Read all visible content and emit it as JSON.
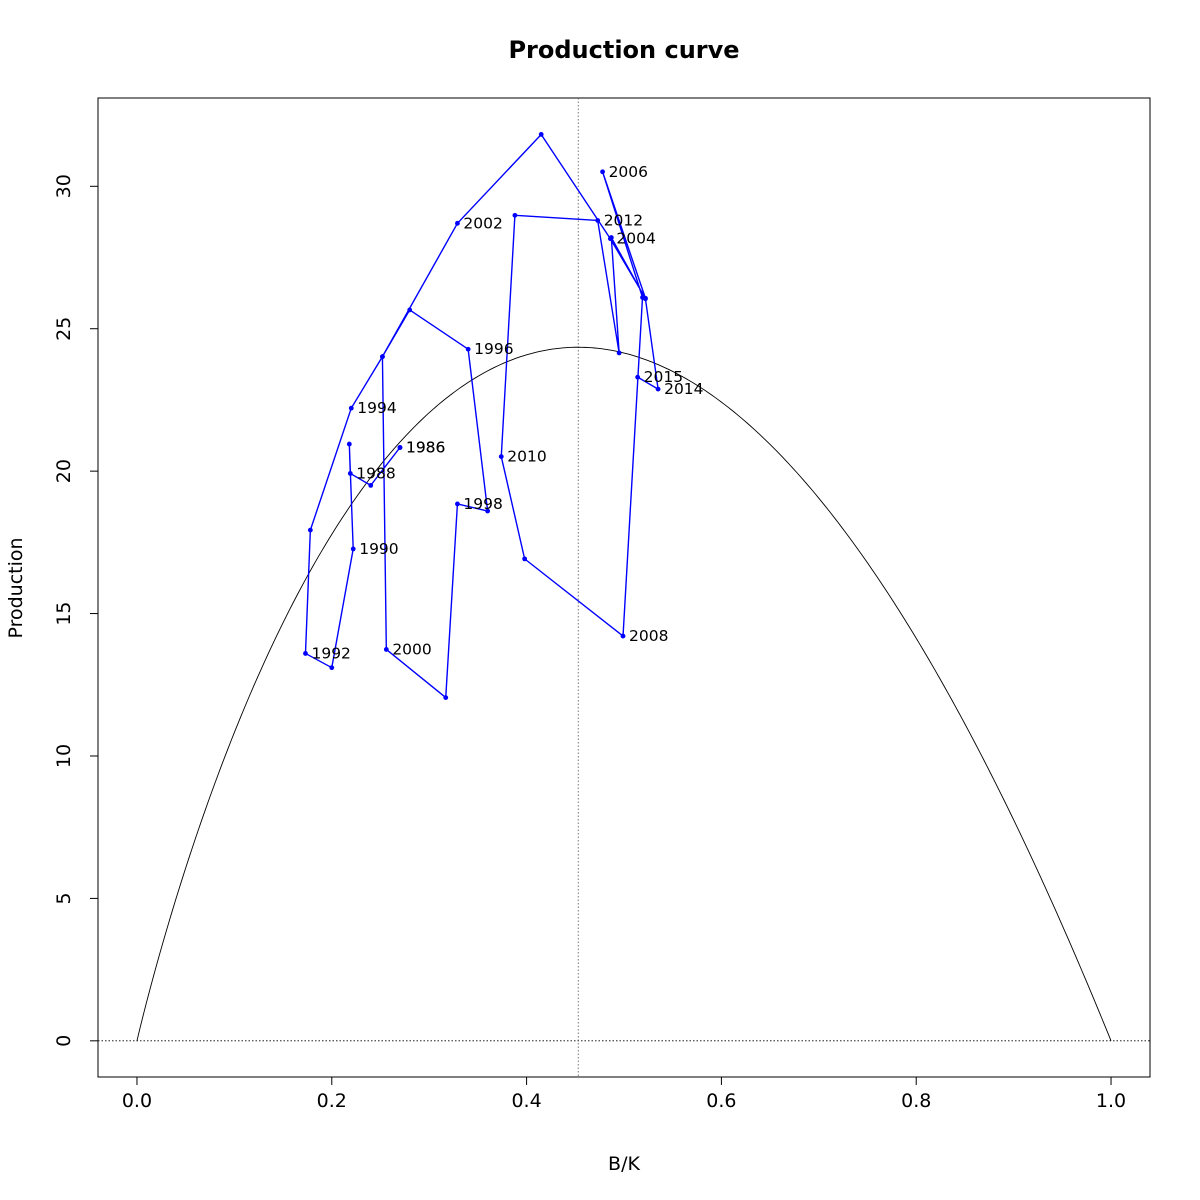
{
  "chart_data": {
    "type": "line",
    "title": "Production curve",
    "xlabel": "B/K",
    "ylabel": "Production",
    "xlim": [
      -0.04,
      1.04
    ],
    "ylim": [
      -1.27,
      33.1
    ],
    "xticks": [
      0.0,
      0.2,
      0.4,
      0.6,
      0.8,
      1.0
    ],
    "xtick_labels": [
      "0.0",
      "0.2",
      "0.4",
      "0.6",
      "0.8",
      "1.0"
    ],
    "yticks": [
      0,
      5,
      10,
      15,
      20,
      25,
      30
    ],
    "ytick_labels": [
      "0",
      "5",
      "10",
      "15",
      "20",
      "25",
      "30"
    ],
    "grid": false,
    "reference_lines": {
      "vertical_x": 0.453,
      "horizontal_y": 0
    },
    "production_curve": {
      "description_color": "#000000",
      "msy": 24.35,
      "bmsy_over_k": 0.453,
      "x_range": [
        0.0,
        1.0
      ]
    },
    "series": [
      {
        "color": "#0000ff",
        "points": [
          {
            "x": 0.27,
            "y": 20.83,
            "label": "1986"
          },
          {
            "x": 0.27,
            "y": 20.83,
            "label": "1986"
          },
          {
            "x": 0.24,
            "y": 19.5,
            "label": ""
          },
          {
            "x": 0.219,
            "y": 19.92,
            "label": "1988"
          },
          {
            "x": 0.218,
            "y": 20.95,
            "label": ""
          },
          {
            "x": 0.222,
            "y": 17.27,
            "label": "1990"
          },
          {
            "x": 0.2,
            "y": 13.1,
            "label": ""
          },
          {
            "x": 0.173,
            "y": 13.6,
            "label": "1992"
          },
          {
            "x": 0.178,
            "y": 17.93,
            "label": ""
          },
          {
            "x": 0.22,
            "y": 22.21,
            "label": "1994"
          },
          {
            "x": 0.252,
            "y": 24.02,
            "label": ""
          },
          {
            "x": 0.28,
            "y": 25.66,
            "label": ""
          },
          {
            "x": 0.34,
            "y": 24.28,
            "label": "1996"
          },
          {
            "x": 0.36,
            "y": 18.6,
            "label": ""
          },
          {
            "x": 0.329,
            "y": 18.85,
            "label": "1998"
          },
          {
            "x": 0.317,
            "y": 12.05,
            "label": ""
          },
          {
            "x": 0.256,
            "y": 13.74,
            "label": "2000"
          },
          {
            "x": 0.252,
            "y": 24.02,
            "label": ""
          },
          {
            "x": 0.329,
            "y": 28.7,
            "label": "2002"
          },
          {
            "x": 0.415,
            "y": 31.82,
            "label": ""
          },
          {
            "x": 0.486,
            "y": 28.16,
            "label": "2004"
          },
          {
            "x": 0.522,
            "y": 26.07,
            "label": ""
          },
          {
            "x": 0.478,
            "y": 30.51,
            "label": "2006"
          },
          {
            "x": 0.519,
            "y": 26.1,
            "label": ""
          },
          {
            "x": 0.499,
            "y": 14.21,
            "label": "2008"
          },
          {
            "x": 0.398,
            "y": 16.92,
            "label": ""
          },
          {
            "x": 0.374,
            "y": 20.51,
            "label": "2010"
          },
          {
            "x": 0.388,
            "y": 28.98,
            "label": ""
          },
          {
            "x": 0.473,
            "y": 28.8,
            "label": "2012"
          },
          {
            "x": 0.495,
            "y": 24.15,
            "label": ""
          },
          {
            "x": 0.487,
            "y": 28.2,
            "label": ""
          },
          {
            "x": 0.522,
            "y": 26.05,
            "label": ""
          },
          {
            "x": 0.535,
            "y": 22.88,
            "label": "2014"
          },
          {
            "x": 0.514,
            "y": 23.3,
            "label": "2015"
          }
        ]
      }
    ]
  }
}
